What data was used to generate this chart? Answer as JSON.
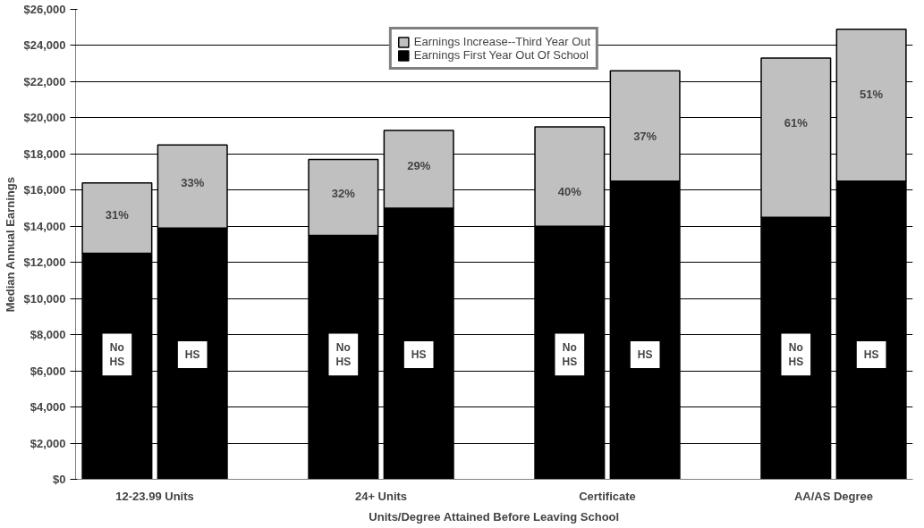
{
  "chart_data": {
    "type": "bar",
    "stacked": true,
    "xlabel": "Units/Degree Attained Before Leaving School",
    "ylabel": "Median Annual Earnings",
    "categories": [
      "No HS",
      "HS",
      "No HS",
      "HS",
      "No HS",
      "HS",
      "No HS",
      "HS"
    ],
    "series": [
      {
        "name": "Earnings First Year Out Of School",
        "color": "#000000",
        "values": [
          12500,
          13900,
          13500,
          15000,
          14000,
          16500,
          14500,
          16500
        ]
      },
      {
        "name": "Earnings Increase--Third Year Out",
        "color": "#c0c0c0",
        "values": [
          3900,
          4600,
          4200,
          4300,
          5500,
          6100,
          8800,
          8400
        ]
      }
    ],
    "annotations": [
      "12-23.99 Units",
      "24+ Units",
      "Certificate",
      "AA/AS Degree",
      "31%",
      "33%",
      "32%",
      "29%",
      "40%",
      "37%",
      "61%",
      "51%"
    ],
    "ylim": [
      0,
      26000
    ],
    "yticks": [
      {
        "value": 0,
        "label": "$0"
      },
      {
        "value": 2000,
        "label": "$2,000"
      },
      {
        "value": 4000,
        "label": "$4,000"
      },
      {
        "value": 6000,
        "label": "$6,000"
      },
      {
        "value": 8000,
        "label": "$8,000"
      },
      {
        "value": 10000,
        "label": "$10,000"
      },
      {
        "value": 12000,
        "label": "$12,000"
      },
      {
        "value": 14000,
        "label": "$14,000"
      },
      {
        "value": 16000,
        "label": "$16,000"
      },
      {
        "value": 18000,
        "label": "$18,000"
      },
      {
        "value": 20000,
        "label": "$20,000"
      },
      {
        "value": 22000,
        "label": "$22,000"
      },
      {
        "value": 24000,
        "label": "$24,000"
      },
      {
        "value": 26000,
        "label": "$26,000"
      }
    ],
    "grid": "y",
    "legend": "top"
  }
}
